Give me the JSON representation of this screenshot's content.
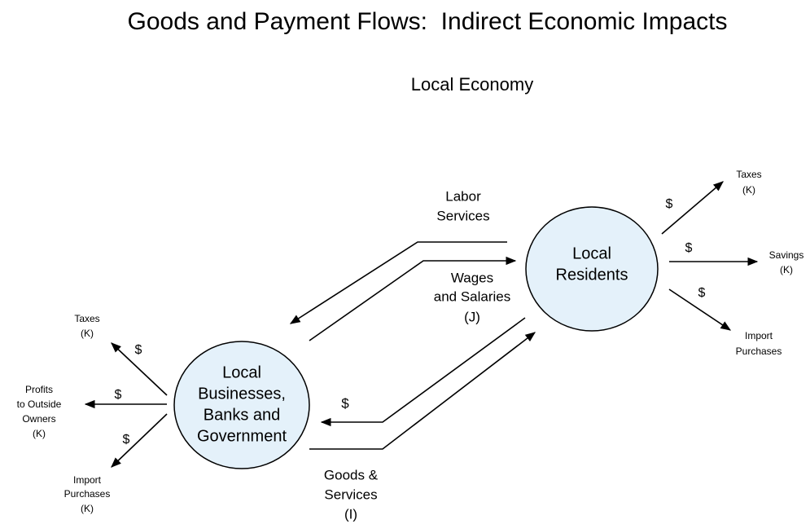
{
  "header": {
    "title": "Goods and Payment Flows:  Indirect Economic Impacts",
    "subtitle": "Local Economy"
  },
  "nodes": [
    {
      "lines": [
        "Local",
        "Residents"
      ]
    },
    {
      "lines": [
        "Local",
        "Businesses,",
        "Banks and",
        "Government"
      ]
    }
  ],
  "flows": [
    {
      "lines": [
        "Labor",
        "Services"
      ]
    },
    {
      "lines": [
        "Wages",
        "and Salaries",
        "(J)"
      ]
    },
    {
      "lines": [
        "$"
      ]
    },
    {
      "lines": [
        "Goods &",
        "Services",
        "(I)"
      ]
    }
  ],
  "leakages": {
    "residents": [
      {
        "symbol": "$",
        "lines": [
          "Taxes",
          "(K)"
        ]
      },
      {
        "symbol": "$",
        "lines": [
          "Savings",
          "(K)"
        ]
      },
      {
        "symbol": "$",
        "lines": [
          "Import",
          "Purchases"
        ]
      }
    ],
    "businesses": [
      {
        "symbol": "$",
        "lines": [
          "Taxes",
          "(K)"
        ]
      },
      {
        "symbol": "$",
        "lines": [
          "Profits",
          "to Outside",
          "Owners",
          "(K)"
        ]
      },
      {
        "symbol": "$",
        "lines": [
          "Import",
          "Purchases",
          "(K)"
        ]
      }
    ]
  }
}
